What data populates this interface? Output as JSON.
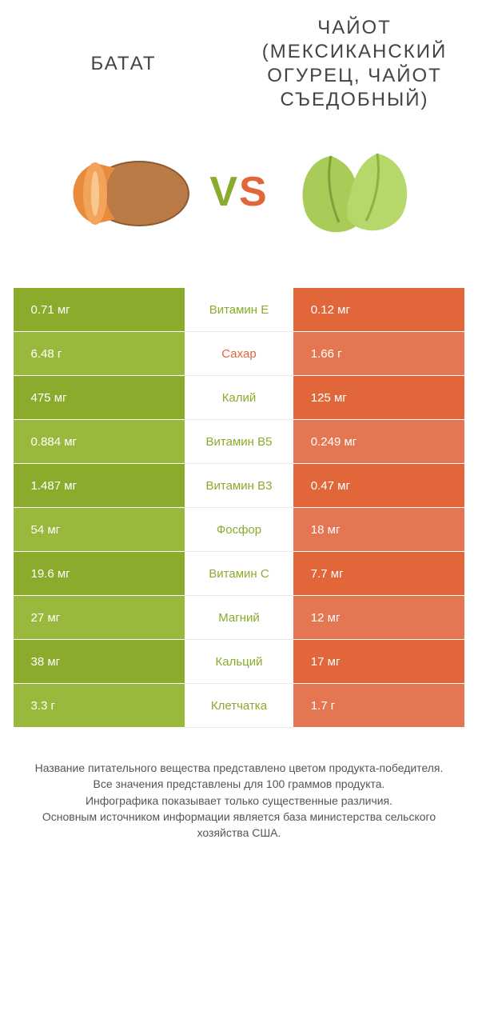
{
  "colors": {
    "left_product": "#8aab2b",
    "right_product": "#e1663a",
    "left_alt": "#99b93d",
    "right_alt": "#e47651",
    "row_border": "#ffffff",
    "text_white": "#ffffff",
    "background": "#ffffff"
  },
  "typography": {
    "title_fontsize": 24,
    "vs_fontsize": 52,
    "cell_fontsize": 15,
    "footer_fontsize": 14
  },
  "header": {
    "left_title": "БАТАТ",
    "right_title": "ЧАЙОТ (МЕКСИКАНСКИЙ ОГУРЕЦ, ЧАЙОТ СЪЕДОБНЫЙ)"
  },
  "vs_label": {
    "v": "V",
    "s": "S"
  },
  "table": {
    "rows": [
      {
        "left": "0.71 мг",
        "label": "Витамин E",
        "right": "0.12 мг",
        "winner": "left"
      },
      {
        "left": "6.48 г",
        "label": "Сахар",
        "right": "1.66 г",
        "winner": "right"
      },
      {
        "left": "475 мг",
        "label": "Калий",
        "right": "125 мг",
        "winner": "left"
      },
      {
        "left": "0.884 мг",
        "label": "Витамин B5",
        "right": "0.249 мг",
        "winner": "left"
      },
      {
        "left": "1.487 мг",
        "label": "Витамин B3",
        "right": "0.47 мг",
        "winner": "left"
      },
      {
        "left": "54 мг",
        "label": "Фосфор",
        "right": "18 мг",
        "winner": "left"
      },
      {
        "left": "19.6 мг",
        "label": "Витамин C",
        "right": "7.7 мг",
        "winner": "left"
      },
      {
        "left": "27 мг",
        "label": "Магний",
        "right": "12 мг",
        "winner": "left"
      },
      {
        "left": "38 мг",
        "label": "Кальций",
        "right": "17 мг",
        "winner": "left"
      },
      {
        "left": "3.3 г",
        "label": "Клетчатка",
        "right": "1.7 г",
        "winner": "left"
      }
    ]
  },
  "footer": {
    "lines": [
      "Название питательного вещества представлено цветом продукта-победителя.",
      "Все значения представлены для 100 граммов продукта.",
      "Инфографика показывает только существенные различия.",
      "Основным источником информации является база министерства сельского хозяйства США."
    ]
  }
}
